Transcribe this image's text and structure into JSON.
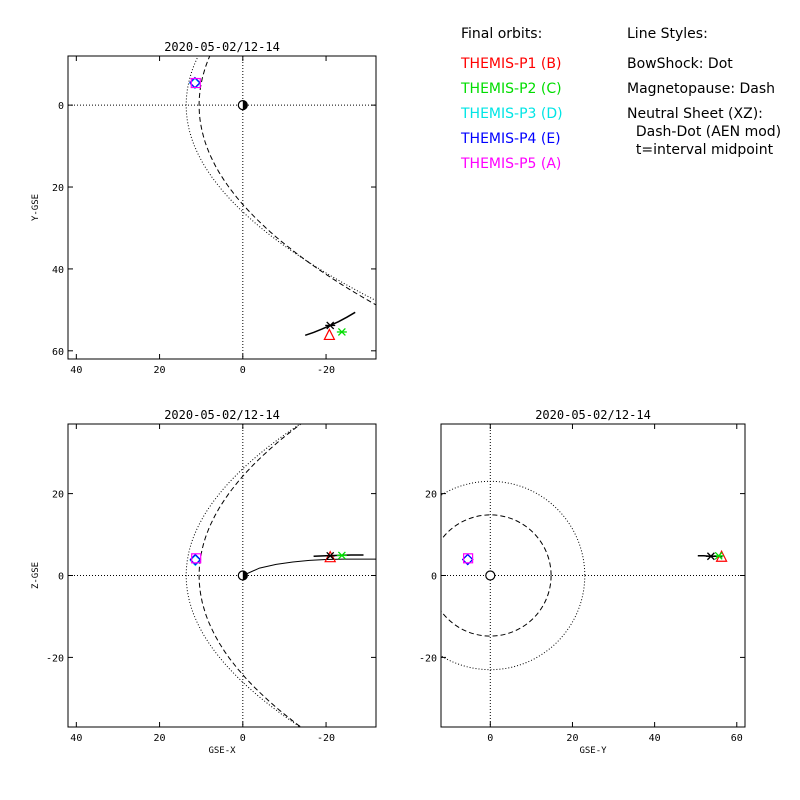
{
  "legend": {
    "orbits_title": "Final orbits:",
    "orbits": [
      {
        "label": "THEMIS-P1 (B)",
        "color": "#ff0000"
      },
      {
        "label": "THEMIS-P2 (C)",
        "color": "#00dd00"
      },
      {
        "label": "THEMIS-P3 (D)",
        "color": "#00e5e5"
      },
      {
        "label": "THEMIS-P4 (E)",
        "color": "#0000ff"
      },
      {
        "label": "THEMIS-P5 (A)",
        "color": "#ff00ff"
      }
    ],
    "styles_title": "Line Styles:",
    "styles": [
      "BowShock: Dot",
      "Magnetopause: Dash",
      "Neutral Sheet (XZ):",
      "  Dash-Dot (AEN mod)",
      "  t=interval midpoint"
    ]
  },
  "chart_data": [
    {
      "type": "scatter",
      "title": "2020-05-02/12-14",
      "xlabel": "",
      "ylabel": "Y-GSE",
      "xlim": [
        42,
        -32
      ],
      "ylim": [
        -12,
        62
      ],
      "y_inverted": true,
      "xticks": [
        40,
        20,
        0,
        -20
      ],
      "xtick_labels": [
        "40",
        "20",
        "0",
        "-20"
      ],
      "yticks": [
        0,
        20,
        40,
        60
      ],
      "ytick_labels": [
        "0",
        "20",
        "40",
        "60"
      ],
      "orbit_track": {
        "x": [
          -15,
          -17,
          -19,
          -21,
          -23,
          -25,
          -27
        ],
        "y": [
          56.2,
          55.5,
          54.7,
          53.8,
          52.9,
          51.8,
          50.6
        ]
      },
      "markers": [
        {
          "probe": "P1",
          "color": "#ff0000",
          "shape": "triangle",
          "x": -20.8,
          "y": 56.0
        },
        {
          "probe": "P2",
          "color": "#00dd00",
          "shape": "asterisk",
          "x": -23.8,
          "y": 55.4
        },
        {
          "probe": "P3",
          "color": "#00e5e5",
          "shape": "diamond",
          "x": 11.5,
          "y": -5.3
        },
        {
          "probe": "P4",
          "color": "#0000ff",
          "shape": "diamond",
          "x": 11.5,
          "y": -5.5
        },
        {
          "probe": "P5",
          "color": "#ff00ff",
          "shape": "square",
          "x": 11.3,
          "y": -5.4
        },
        {
          "probe": "midpoint",
          "color": "#000000",
          "shape": "asterisk",
          "x": -21.0,
          "y": 53.8
        }
      ]
    },
    {
      "type": "scatter",
      "title": "2020-05-02/12-14",
      "xlabel": "GSE-X",
      "ylabel": "Z-GSE",
      "xlim": [
        42,
        -32
      ],
      "ylim": [
        -37,
        37
      ],
      "xticks": [
        40,
        20,
        0,
        -20
      ],
      "xtick_labels": [
        "40",
        "20",
        "0",
        "-20"
      ],
      "yticks": [
        -20,
        0,
        20
      ],
      "ytick_labels": [
        "-20",
        "0",
        "20"
      ],
      "neutral_sheet": {
        "x": [
          0,
          4,
          8,
          12,
          16,
          20,
          24,
          28,
          32
        ],
        "y": [
          0,
          1.8,
          2.7,
          3.3,
          3.7,
          3.9,
          4.0,
          4.0,
          4.0
        ],
        "x_sign": -1
      },
      "orbit_track": {
        "x": [
          -17,
          -20,
          -23,
          -26,
          -29
        ],
        "y": [
          4.7,
          4.8,
          4.9,
          5.0,
          5.0
        ]
      },
      "markers": [
        {
          "probe": "P1",
          "color": "#ff0000",
          "shape": "triangle",
          "x": -21.0,
          "y": 4.6
        },
        {
          "probe": "P2",
          "color": "#00dd00",
          "shape": "asterisk",
          "x": -23.8,
          "y": 4.9
        },
        {
          "probe": "P3",
          "color": "#00e5e5",
          "shape": "diamond",
          "x": 11.4,
          "y": 3.7
        },
        {
          "probe": "P4",
          "color": "#0000ff",
          "shape": "diamond",
          "x": 11.4,
          "y": 3.9
        },
        {
          "probe": "P5",
          "color": "#ff00ff",
          "shape": "square",
          "x": 11.2,
          "y": 4.2
        },
        {
          "probe": "midpoint",
          "color": "#000000",
          "shape": "asterisk",
          "x": -21.0,
          "y": 4.8
        }
      ]
    },
    {
      "type": "scatter",
      "title": "2020-05-02/12-14",
      "xlabel": "GSE-Y",
      "ylabel": "",
      "xlim": [
        -12,
        62
      ],
      "ylim": [
        -37,
        37
      ],
      "xticks": [
        0,
        20,
        40,
        60
      ],
      "xtick_labels": [
        "0",
        "20",
        "40",
        "60"
      ],
      "yticks": [
        -20,
        0,
        20
      ],
      "ytick_labels": [
        "-20",
        "0",
        "20"
      ],
      "bowshock_radius": 23,
      "magnetopause_radius": 14.8,
      "orbit_track": {
        "x": [
          50.5,
          52,
          53.5,
          55,
          56.5
        ],
        "y": [
          4.8,
          4.8,
          4.7,
          4.7,
          4.6
        ]
      },
      "markers": [
        {
          "probe": "P1",
          "color": "#ff0000",
          "shape": "triangle",
          "x": 56.3,
          "y": 4.7
        },
        {
          "probe": "P2",
          "color": "#00dd00",
          "shape": "asterisk",
          "x": 55.6,
          "y": 4.8
        },
        {
          "probe": "P3",
          "color": "#00e5e5",
          "shape": "diamond",
          "x": -5.5,
          "y": 3.9
        },
        {
          "probe": "P4",
          "color": "#0000ff",
          "shape": "diamond",
          "x": -5.5,
          "y": 3.9
        },
        {
          "probe": "P5",
          "color": "#ff00ff",
          "shape": "square",
          "x": -5.4,
          "y": 4.2
        },
        {
          "probe": "midpoint",
          "color": "#000000",
          "shape": "asterisk",
          "x": 53.7,
          "y": 4.7
        }
      ]
    }
  ]
}
